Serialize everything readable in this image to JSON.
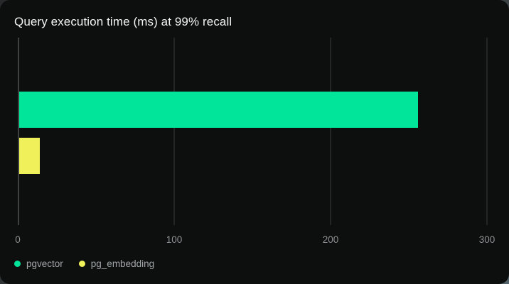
{
  "card": {
    "title": "Query execution time (ms) at 99% recall"
  },
  "chart_data": {
    "type": "bar",
    "orientation": "horizontal",
    "title": "Query execution time (ms) at 99% recall",
    "unit": "ms",
    "series": [
      {
        "name": "pgvector",
        "value": 255,
        "color": "#00e599"
      },
      {
        "name": "pg_embedding",
        "value": 13,
        "color": "#eff05a"
      }
    ],
    "xticks": [
      0,
      100,
      200,
      300
    ],
    "xlim": [
      0,
      300
    ],
    "grid": "vertical-only",
    "legend_position": "bottom-left",
    "background_color": "#0d0f0e",
    "gridline_color": "#232625",
    "axis_line_color": "#3e4140",
    "tick_label_color": "#8d9294",
    "legend_text_color": "#a3a7aa",
    "title_color": "#f2f3f3"
  }
}
